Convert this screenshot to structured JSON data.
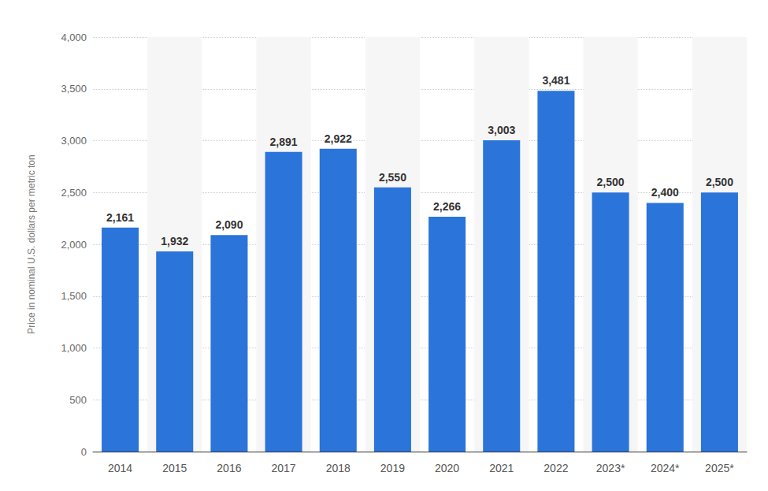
{
  "chart_data": {
    "type": "bar",
    "categories": [
      "2014",
      "2015",
      "2016",
      "2017",
      "2018",
      "2019",
      "2020",
      "2021",
      "2022",
      "2023*",
      "2024*",
      "2025*"
    ],
    "values": [
      2161,
      1932,
      2090,
      2891,
      2922,
      2550,
      2266,
      3003,
      3481,
      2500,
      2400,
      2500
    ],
    "value_labels": [
      "2,161",
      "1,932",
      "2,090",
      "2,891",
      "2,922",
      "2,550",
      "2,266",
      "3,003",
      "3,481",
      "2,500",
      "2,400",
      "2,500"
    ],
    "color": "#2a74da",
    "ylabel": "Price in nominal U.S. dollars per metric ton",
    "ylim": [
      0,
      4000
    ],
    "yticks": [
      0,
      500,
      {
        "value": 1000,
        "label": "1,000"
      },
      {
        "value": 1500,
        "label": "1,500"
      },
      {
        "value": 2000,
        "label": "2,000"
      },
      {
        "value": 2500,
        "label": "2,500"
      },
      {
        "value": 3000,
        "label": "3,000"
      },
      {
        "value": 3500,
        "label": "3,500"
      },
      {
        "value": 4000,
        "label": "4,000"
      }
    ],
    "grid": true,
    "data_labels": true
  }
}
